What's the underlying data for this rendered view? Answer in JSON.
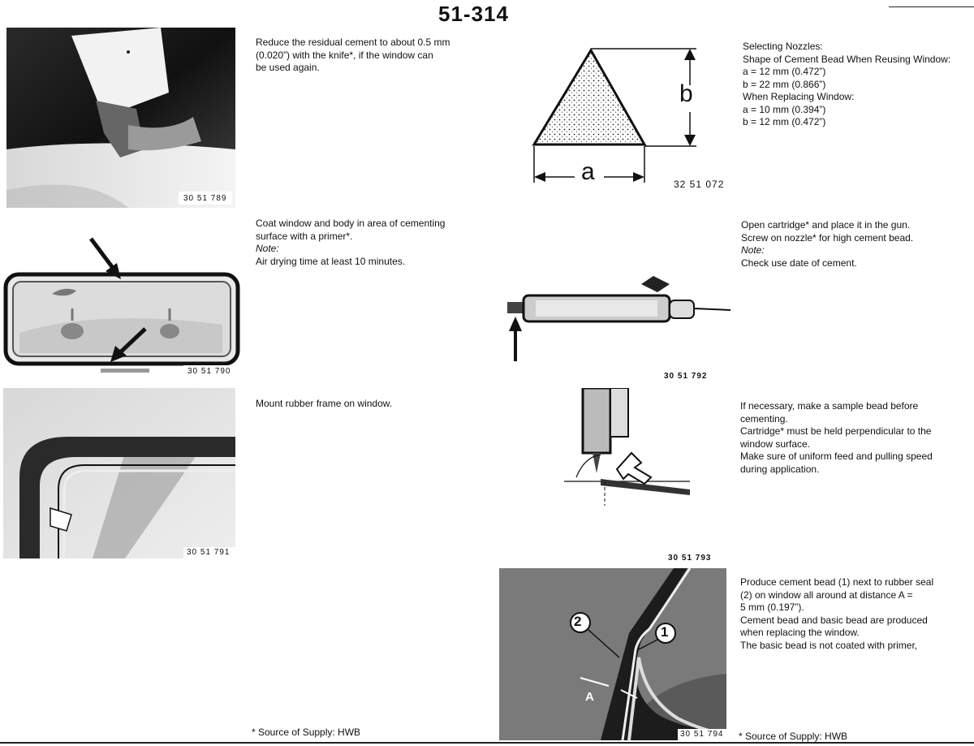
{
  "page_number": "51-314",
  "sections": {
    "s1": {
      "lines": [
        "Reduce the residual cement to about 0.5 mm",
        "(0.020”) with the knife*, if the window can",
        "be used again."
      ],
      "figure": "30 51 789"
    },
    "s2": {
      "lines": [
        "Selecting Nozzles:",
        "Shape of Cement Bead When Reusing Window:",
        "a  = 12 mm (0.472”)",
        "b  = 22 mm (0.866”)",
        "When Replacing Window:",
        "a  = 10 mm (0.394”)",
        "b  = 12 mm (0.472”)"
      ],
      "figure": "32 51 072",
      "label_a": "a",
      "label_b": "b"
    },
    "s3": {
      "lines": [
        "Coat window and body in area of cementing",
        "surface with a primer*."
      ],
      "note": "Note:",
      "note_text": "Air drying time at least 10 minutes.",
      "figure": "30 51 790"
    },
    "s4": {
      "lines": [
        "Open cartridge* and place it in the gun.",
        "Screw on nozzle* for high cement bead."
      ],
      "note": "Note:",
      "note_text": "Check use date of cement.",
      "figure": "30 51 792"
    },
    "s5": {
      "lines": [
        "Mount rubber frame on window."
      ],
      "figure": "30 51 791"
    },
    "s6": {
      "lines": [
        "If necessary, make a sample bead before",
        "cementing.",
        "Cartridge* must be held perpendicular to the",
        "window surface.",
        "Make sure of uniform feed and pulling speed",
        "during application."
      ],
      "figure": "30 51 793"
    },
    "s7": {
      "lines": [
        "Produce cement bead (1) next to rubber seal",
        "(2) on window all around at distance A =",
        "5 mm (0.197”).",
        "Cement bead and basic bead are produced",
        "when replacing the window.",
        "The basic bead is not coated with primer,"
      ],
      "figure": "30 51 794",
      "label_1": "1",
      "label_2": "2",
      "label_A": "A"
    }
  },
  "footnote_left": "* Source of Supply: HWB",
  "footnote_right": "* Source of Supply: HWB"
}
